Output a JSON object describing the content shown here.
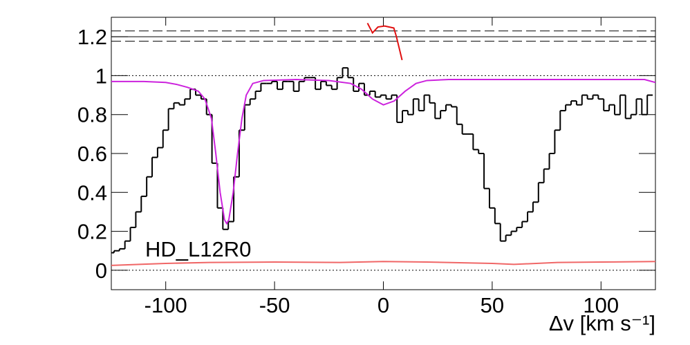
{
  "chart_data": {
    "type": "step",
    "annotation": "HD_L12R0",
    "xlabel": "Δv [km s⁻¹]",
    "xlim": [
      -125,
      125
    ],
    "ylim": [
      -0.1,
      1.3
    ],
    "xticks": [
      -100,
      -50,
      0,
      50,
      100
    ],
    "yticks": [
      0,
      0.2,
      0.4,
      0.6,
      0.8,
      1,
      1.2
    ],
    "reference_lines": [
      {
        "value": 1.23,
        "style": "dashed"
      },
      {
        "value": 1.2,
        "style": "solid"
      },
      {
        "value": 1.177,
        "style": "dashed"
      },
      {
        "value": 1,
        "style": "dotted"
      },
      {
        "value": 0,
        "style": "dotted"
      }
    ],
    "series": [
      {
        "kind": "histogram",
        "color": "#000000",
        "x": [
          -125,
          -122.5,
          -120,
          -117.5,
          -115,
          -112.5,
          -110,
          -107.5,
          -105,
          -102.5,
          -100,
          -97.5,
          -95,
          -92.5,
          -90,
          -87.5,
          -85,
          -82.5,
          -80,
          -77.5,
          -75,
          -72.5,
          -70,
          -67.5,
          -65,
          -62.5,
          -60,
          -57.5,
          -55,
          -52.5,
          -50,
          -47.5,
          -45,
          -42.5,
          -40,
          -37.5,
          -35,
          -32.5,
          -30,
          -27.5,
          -25,
          -22.5,
          -20,
          -17.5,
          -15,
          -12.5,
          -10,
          -7.5,
          -5,
          -2.5,
          0,
          2.5,
          5,
          7.5,
          10,
          12.5,
          15,
          17.5,
          20,
          22.5,
          25,
          27.5,
          30,
          32.5,
          35,
          37.5,
          40,
          42.5,
          45,
          47.5,
          50,
          52.5,
          55,
          57.5,
          60,
          62.5,
          65,
          67.5,
          70,
          72.5,
          75,
          77.5,
          80,
          82.5,
          85,
          87.5,
          90,
          92.5,
          95,
          97.5,
          100,
          102.5,
          105,
          107.5,
          110,
          112.5,
          115,
          117.5,
          120,
          122.5
        ],
        "values": [
          0.09,
          0.1,
          0.11,
          0.15,
          0.22,
          0.3,
          0.38,
          0.48,
          0.58,
          0.63,
          0.72,
          0.83,
          0.86,
          0.85,
          0.88,
          0.93,
          0.9,
          0.88,
          0.8,
          0.55,
          0.32,
          0.21,
          0.25,
          0.48,
          0.72,
          0.85,
          0.88,
          0.92,
          0.96,
          0.96,
          0.97,
          0.93,
          0.97,
          0.97,
          0.92,
          0.97,
          0.99,
          0.99,
          0.93,
          0.97,
          0.95,
          0.93,
          0.99,
          1.04,
          0.99,
          0.92,
          0.96,
          0.9,
          0.92,
          0.89,
          0.9,
          0.88,
          0.9,
          0.76,
          0.82,
          0.8,
          0.88,
          0.82,
          0.9,
          0.86,
          0.78,
          0.82,
          0.85,
          0.84,
          0.75,
          0.7,
          0.7,
          0.62,
          0.6,
          0.42,
          0.32,
          0.24,
          0.15,
          0.18,
          0.2,
          0.22,
          0.25,
          0.3,
          0.35,
          0.45,
          0.52,
          0.6,
          0.72,
          0.82,
          0.85,
          0.87,
          0.85,
          0.9,
          0.88,
          0.9,
          0.88,
          0.82,
          0.85,
          0.8,
          0.9,
          0.78,
          0.8,
          0.88,
          0.8,
          0.9
        ]
      },
      {
        "kind": "line",
        "color": "#cc22dd",
        "x": [
          -125,
          -110,
          -100,
          -95,
          -90,
          -85,
          -82,
          -79,
          -77,
          -75,
          -73,
          -72,
          -71,
          -69,
          -67,
          -65,
          -63,
          -60,
          -55,
          -40,
          -25,
          -15,
          -10,
          -5,
          0,
          5,
          10,
          15,
          20,
          30,
          60,
          120,
          125
        ],
        "values": [
          0.97,
          0.97,
          0.965,
          0.955,
          0.94,
          0.92,
          0.88,
          0.78,
          0.6,
          0.4,
          0.26,
          0.24,
          0.26,
          0.4,
          0.6,
          0.78,
          0.9,
          0.96,
          0.975,
          0.98,
          0.975,
          0.96,
          0.93,
          0.88,
          0.85,
          0.87,
          0.92,
          0.96,
          0.975,
          0.98,
          0.98,
          0.98,
          0.965
        ]
      },
      {
        "kind": "line",
        "color": "#f06666",
        "x": [
          -125,
          -100,
          -80,
          -50,
          -20,
          0,
          20,
          50,
          60,
          80,
          100,
          125
        ],
        "values": [
          0.025,
          0.035,
          0.04,
          0.042,
          0.04,
          0.045,
          0.042,
          0.035,
          0.03,
          0.04,
          0.042,
          0.045
        ]
      },
      {
        "kind": "line",
        "color": "#e01010",
        "x": [
          -7.3,
          -5,
          -2.5,
          0.6,
          4.8,
          6,
          8.6
        ],
        "values": [
          1.27,
          1.22,
          1.25,
          1.255,
          1.245,
          1.2,
          1.08
        ]
      }
    ]
  }
}
